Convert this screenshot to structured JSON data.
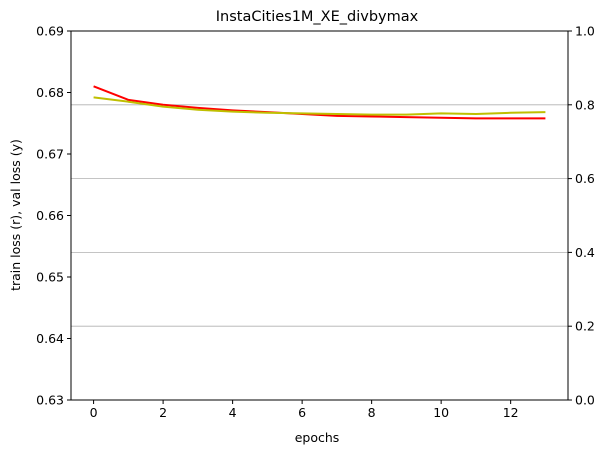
{
  "chart_data": {
    "type": "line",
    "title": "InstaCities1M_XE_divbymax",
    "xlabel": "epochs",
    "ylabel": "train loss (r), val loss (y)",
    "y2label": "",
    "xlim": [
      -0.65,
      13.65
    ],
    "ylim": [
      0.63,
      0.69
    ],
    "y2lim": [
      0.0,
      1.0
    ],
    "xticks": [
      0,
      2,
      4,
      6,
      8,
      10,
      12
    ],
    "yticks": [
      0.63,
      0.64,
      0.65,
      0.66,
      0.67,
      0.68,
      0.69
    ],
    "y2ticks": [
      0.0,
      0.2,
      0.4,
      0.6,
      0.8,
      1.0
    ],
    "grid": "horizontal lines at right-axis ticks",
    "legend": "none",
    "x": [
      0,
      1,
      2,
      3,
      4,
      5,
      6,
      7,
      8,
      9,
      10,
      11,
      12,
      13
    ],
    "series": [
      {
        "color": "#ff0000",
        "values": [
          0.681,
          0.6788,
          0.678,
          0.6775,
          0.6771,
          0.6768,
          0.6765,
          0.6762,
          0.6761,
          0.676,
          0.6759,
          0.6758,
          0.6758,
          0.6758
        ]
      },
      {
        "color": "#bfbf00",
        "values": [
          0.6792,
          0.6785,
          0.6777,
          0.6772,
          0.6769,
          0.6767,
          0.6766,
          0.6765,
          0.6764,
          0.6764,
          0.6766,
          0.6765,
          0.6767,
          0.6768
        ]
      }
    ]
  }
}
